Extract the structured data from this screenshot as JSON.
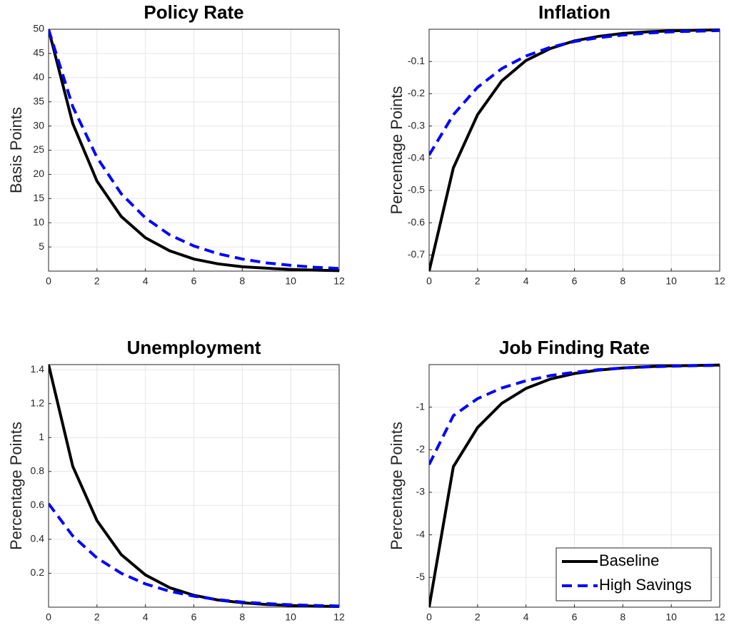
{
  "chart_data": [
    {
      "type": "line",
      "title": "Policy Rate",
      "y_label": "Basis Points",
      "grid": true,
      "x": [
        0,
        1,
        2,
        3,
        4,
        5,
        6,
        7,
        8,
        9,
        10,
        11,
        12
      ],
      "xlim": [
        0,
        12
      ],
      "xticks": [
        0,
        2,
        4,
        6,
        8,
        10,
        12
      ],
      "ylim": [
        0,
        50
      ],
      "yticks": [
        5,
        10,
        15,
        20,
        25,
        30,
        35,
        40,
        45,
        50
      ],
      "series": [
        {
          "color": "#000000",
          "style": "solid",
          "values": [
            50,
            30.5,
            18.6,
            11.3,
            6.9,
            4.2,
            2.5,
            1.5,
            0.9,
            0.6,
            0.35,
            0.2,
            0.1
          ]
        },
        {
          "color": "#0000ff",
          "style": "dashed",
          "values": [
            50,
            34,
            23.5,
            16,
            11,
            7.5,
            5.2,
            3.6,
            2.5,
            1.7,
            1.2,
            0.8,
            0.55
          ]
        }
      ]
    },
    {
      "type": "line",
      "title": "Inflation",
      "y_label": "Percentage Points",
      "grid": true,
      "x": [
        0,
        1,
        2,
        3,
        4,
        5,
        6,
        7,
        8,
        9,
        10,
        11,
        12
      ],
      "xlim": [
        0,
        12
      ],
      "xticks": [
        0,
        2,
        4,
        6,
        8,
        10,
        12
      ],
      "ylim": [
        -0.75,
        0
      ],
      "yticks": [
        -0.7,
        -0.6,
        -0.5,
        -0.4,
        -0.3,
        -0.2,
        -0.1
      ],
      "series": [
        {
          "color": "#000000",
          "style": "solid",
          "values": [
            -0.75,
            -0.43,
            -0.265,
            -0.16,
            -0.097,
            -0.06,
            -0.036,
            -0.022,
            -0.013,
            -0.008,
            -0.005,
            -0.003,
            -0.002
          ]
        },
        {
          "color": "#0000ff",
          "style": "dashed",
          "values": [
            -0.39,
            -0.265,
            -0.18,
            -0.122,
            -0.083,
            -0.056,
            -0.038,
            -0.026,
            -0.018,
            -0.012,
            -0.008,
            -0.006,
            -0.004
          ]
        }
      ]
    },
    {
      "type": "line",
      "title": "Unemployment",
      "y_label": "Percentage Points",
      "grid": true,
      "x": [
        0,
        1,
        2,
        3,
        4,
        5,
        6,
        7,
        8,
        9,
        10,
        11,
        12
      ],
      "xlim": [
        0,
        12
      ],
      "xticks": [
        0,
        2,
        4,
        6,
        8,
        10,
        12
      ],
      "ylim": [
        0,
        1.43
      ],
      "yticks": [
        0.2,
        0.4,
        0.6,
        0.8,
        1,
        1.2,
        1.4
      ],
      "series": [
        {
          "color": "#000000",
          "style": "solid",
          "values": [
            1.43,
            0.83,
            0.51,
            0.31,
            0.19,
            0.115,
            0.07,
            0.042,
            0.026,
            0.016,
            0.01,
            0.006,
            0.004
          ]
        },
        {
          "color": "#0000ff",
          "style": "dashed",
          "values": [
            0.61,
            0.42,
            0.29,
            0.2,
            0.137,
            0.094,
            0.065,
            0.044,
            0.03,
            0.021,
            0.014,
            0.01,
            0.007
          ]
        }
      ]
    },
    {
      "type": "line",
      "title": "Job Finding Rate",
      "y_label": "Percentage Points",
      "grid": true,
      "legend": "lower right",
      "x": [
        0,
        1,
        2,
        3,
        4,
        5,
        6,
        7,
        8,
        9,
        10,
        11,
        12
      ],
      "xlim": [
        0,
        12
      ],
      "xticks": [
        0,
        2,
        4,
        6,
        8,
        10,
        12
      ],
      "ylim": [
        -5.7,
        0
      ],
      "yticks": [
        -5,
        -4,
        -3,
        -2,
        -1
      ],
      "series": [
        {
          "name": "Baseline",
          "color": "#000000",
          "style": "solid",
          "values": [
            -5.7,
            -2.4,
            -1.48,
            -0.91,
            -0.56,
            -0.34,
            -0.21,
            -0.13,
            -0.08,
            -0.05,
            -0.03,
            -0.02,
            -0.01
          ]
        },
        {
          "name": "High Savings",
          "color": "#0000ff",
          "style": "dashed",
          "values": [
            -2.35,
            -1.2,
            -0.8,
            -0.55,
            -0.38,
            -0.26,
            -0.18,
            -0.12,
            -0.08,
            -0.055,
            -0.038,
            -0.026,
            -0.018
          ]
        }
      ]
    }
  ]
}
